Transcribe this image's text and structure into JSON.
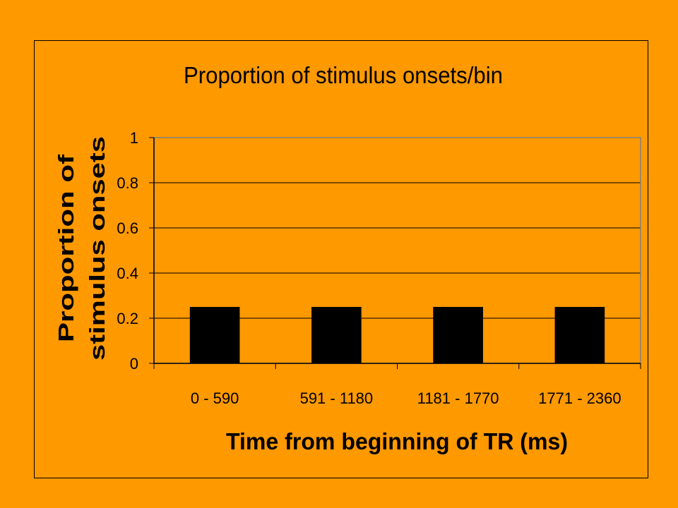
{
  "chart_data": {
    "type": "bar",
    "title": "Proportion of stimulus onsets/bin",
    "xlabel": "Time from beginning of TR (ms)",
    "ylabel": [
      "Proportion of",
      "stimulus onsets"
    ],
    "categories": [
      "0 - 590",
      "591 - 1180",
      "1181 - 1770",
      "1771 - 2360"
    ],
    "values": [
      0.25,
      0.25,
      0.25,
      0.25
    ],
    "ylim": [
      0,
      1
    ],
    "yticks": [
      "0",
      "0.2",
      "0.4",
      "0.6",
      "0.8",
      "1"
    ],
    "grid": true,
    "legend": "none",
    "colors": {
      "background": "#FF9900",
      "bar": "#000000",
      "gridline": "#000000",
      "plot_border": "#808080"
    }
  }
}
